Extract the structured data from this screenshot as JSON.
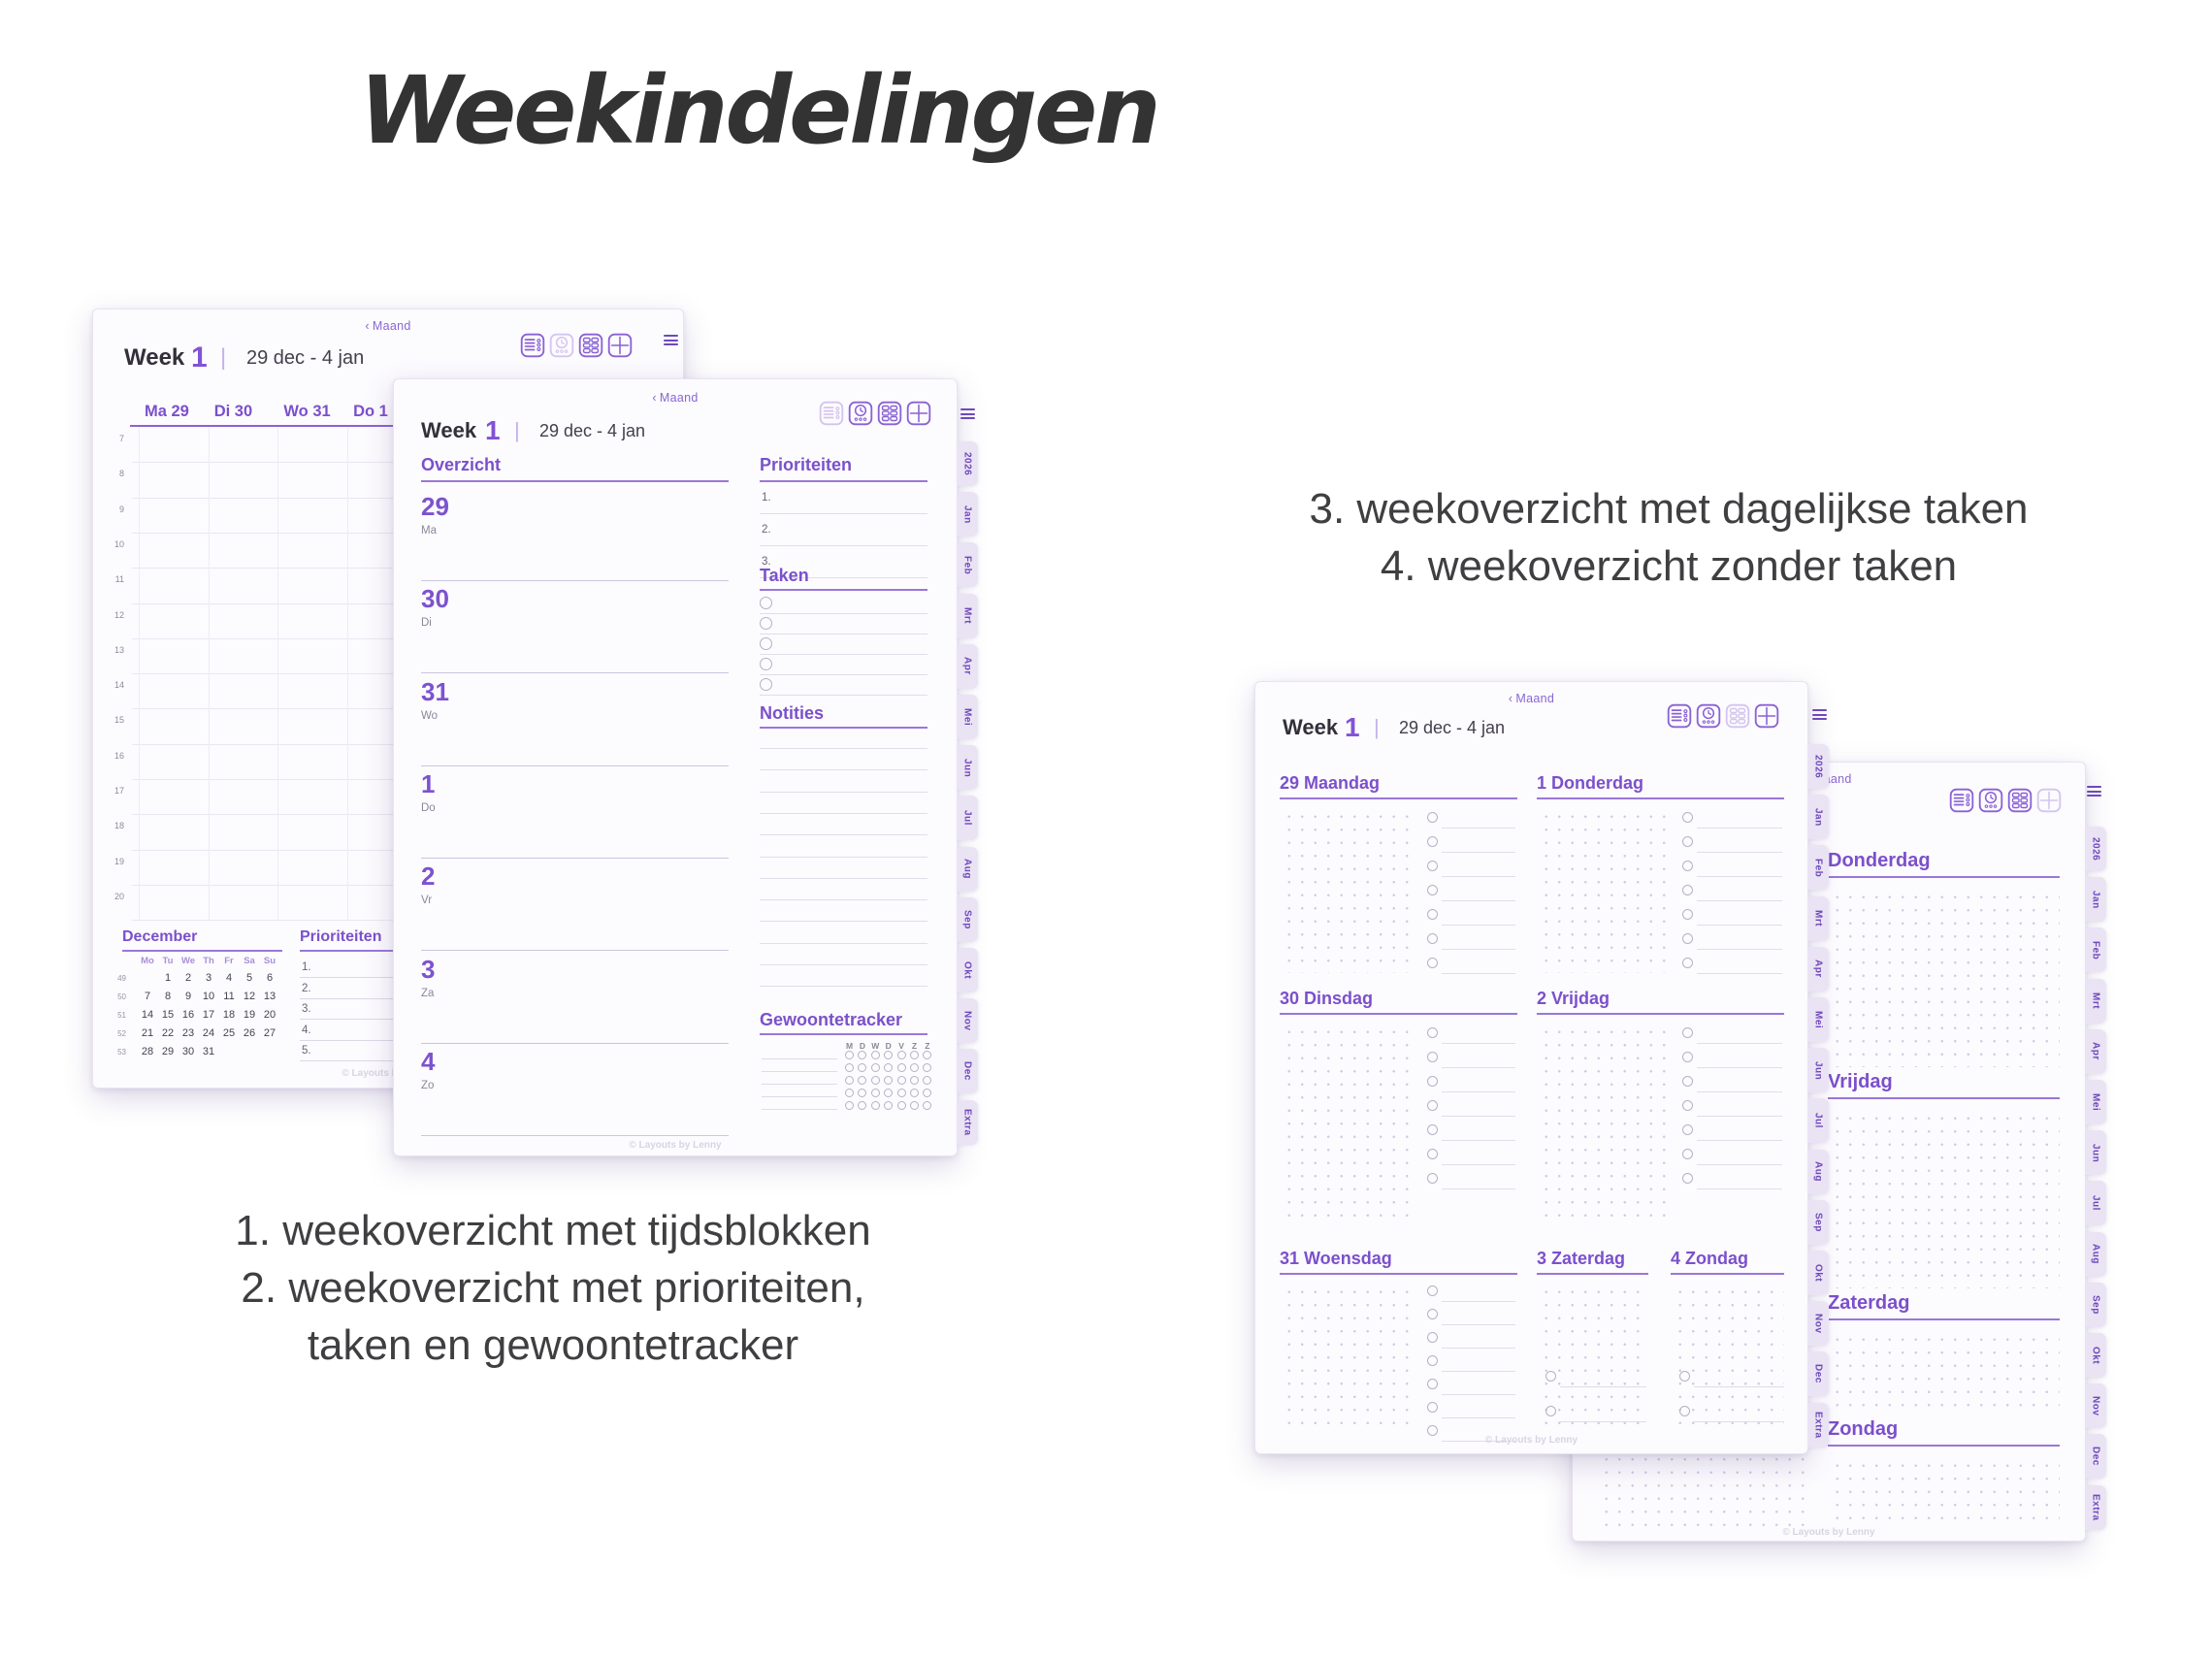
{
  "title": "Weekindelingen",
  "captions": {
    "left_lines": [
      "1. weekoverzicht met tijdsblokken",
      "2. weekoverzicht met prioriteiten,",
      "taken en gewoontetracker"
    ],
    "right_lines": [
      "3. weekoverzicht met dagelijkse taken",
      "4. weekoverzicht zonder taken"
    ]
  },
  "colors": {
    "accent_purple": "#7b50cb",
    "tab_background": "#eae3f4",
    "page_background": "#fcfbfe",
    "caption_text": "#3f3e41",
    "circle_outline": "#b7b1c4"
  },
  "common": {
    "back_chevron": "‹",
    "back_label": "Maand",
    "week_label": "Week",
    "week_number": "1",
    "divider": "|",
    "date_range": "29 dec - 4 jan",
    "watermark": "© Layouts by Lenny",
    "layout_icons": [
      "list-layout-icon",
      "time-blocks-layout-icon",
      "daily-tasks-layout-icon",
      "blank-layout-icon"
    ],
    "tabs": [
      "2026",
      "Jan",
      "Feb",
      "Mrt",
      "Apr",
      "Mei",
      "Jun",
      "Jul",
      "Aug",
      "Sep",
      "Okt",
      "Nov",
      "Dec",
      "Extra"
    ]
  },
  "planner_timeblocks": {
    "active_icon": 1,
    "day_columns": [
      "Ma 29",
      "Di 30",
      "Wo 31",
      "Do 1"
    ],
    "hours": [
      "7",
      "8",
      "9",
      "10",
      "11",
      "12",
      "13",
      "14",
      "15",
      "16",
      "17",
      "18",
      "19",
      "20"
    ],
    "mini_calendar": {
      "title": "December",
      "weekdays": [
        "Mo",
        "Tu",
        "We",
        "Th",
        "Fr",
        "Sa",
        "Su"
      ],
      "weeks": [
        {
          "week": "49",
          "days": [
            "",
            "1",
            "2",
            "3",
            "4",
            "5",
            "6"
          ]
        },
        {
          "week": "50",
          "days": [
            "7",
            "8",
            "9",
            "10",
            "11",
            "12",
            "13"
          ]
        },
        {
          "week": "51",
          "days": [
            "14",
            "15",
            "16",
            "17",
            "18",
            "19",
            "20"
          ]
        },
        {
          "week": "52",
          "days": [
            "21",
            "22",
            "23",
            "24",
            "25",
            "26",
            "27"
          ]
        },
        {
          "week": "53",
          "days": [
            "28",
            "29",
            "30",
            "31",
            "",
            "",
            ""
          ]
        }
      ]
    },
    "priorities": {
      "title": "Prioriteiten",
      "items": [
        "1.",
        "2.",
        "3.",
        "4.",
        "5."
      ]
    }
  },
  "planner_overview": {
    "active_icon": 0,
    "overview_title": "Overzicht",
    "days": [
      {
        "num": "29",
        "abbr": "Ma"
      },
      {
        "num": "30",
        "abbr": "Di"
      },
      {
        "num": "31",
        "abbr": "Wo"
      },
      {
        "num": "1",
        "abbr": "Do"
      },
      {
        "num": "2",
        "abbr": "Vr"
      },
      {
        "num": "3",
        "abbr": "Za"
      },
      {
        "num": "4",
        "abbr": "Zo"
      }
    ],
    "priorities": {
      "title": "Prioriteiten",
      "items": [
        "1.",
        "2.",
        "3."
      ]
    },
    "tasks": {
      "title": "Taken",
      "rows": 5
    },
    "notes": {
      "title": "Notities",
      "lines": 12
    },
    "habit_tracker": {
      "title": "Gewoontetracker",
      "day_letters": [
        "M",
        "D",
        "W",
        "D",
        "V",
        "Z",
        "Z"
      ],
      "rows": 5
    }
  },
  "planner_daily_tasks": {
    "active_icon": 2,
    "sections": {
      "col_a": [
        {
          "label": "29 Maandag",
          "tasks": 7
        },
        {
          "label": "30 Dinsdag",
          "tasks": 7
        },
        {
          "label": "31 Woensdag",
          "tasks": 7
        }
      ],
      "col_b": [
        {
          "label": "1 Donderdag",
          "tasks": 7
        },
        {
          "label": "2 Vrijdag",
          "tasks": 7
        }
      ],
      "bottom": [
        {
          "label": "3 Zaterdag",
          "tasks": 2
        },
        {
          "label": "4 Zondag",
          "tasks": 2
        }
      ]
    }
  },
  "planner_blank": {
    "active_icon": 3,
    "days": [
      "Donderdag",
      "Vrijdag",
      "Zaterdag",
      "Zondag"
    ]
  }
}
